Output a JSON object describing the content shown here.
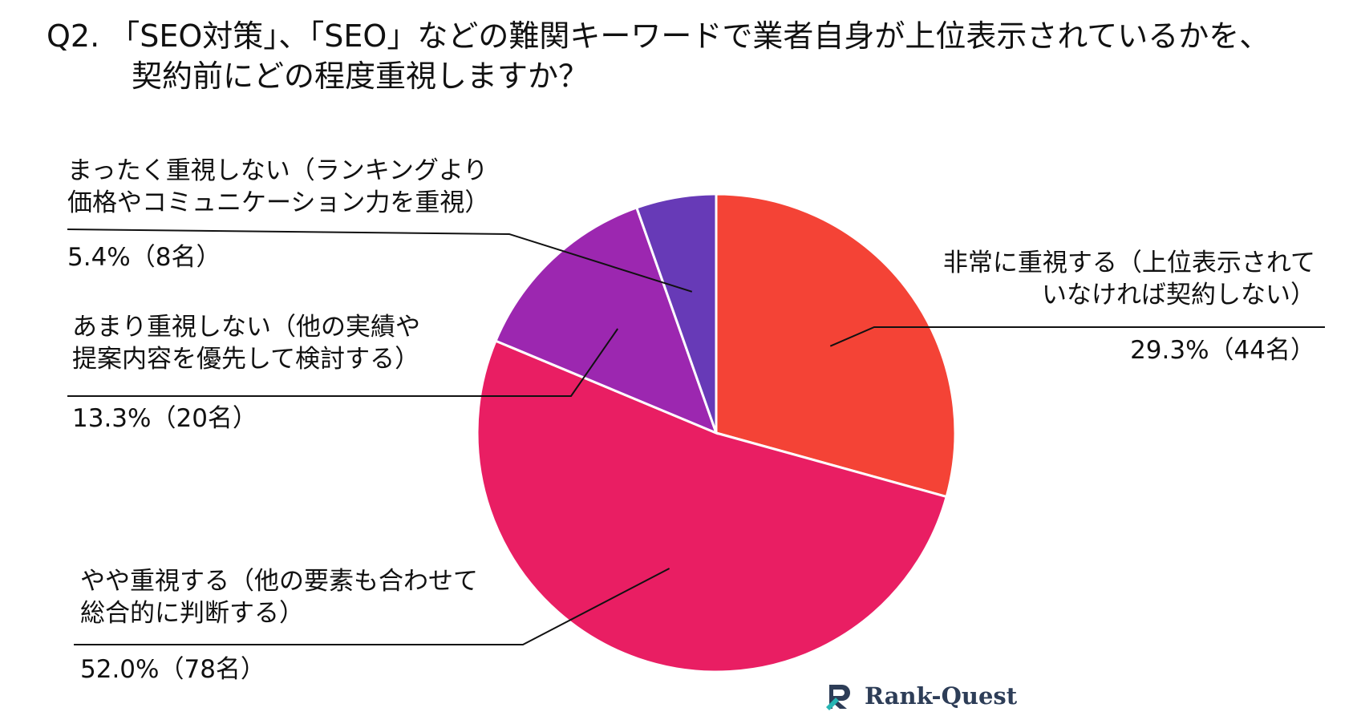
{
  "title": {
    "line1": "Q2. 「SEO対策」、「SEO」などの難関キーワードで業者自身が上位表示されているかを、",
    "line2": "契約前にどの程度重視しますか？"
  },
  "chart_data": {
    "type": "pie",
    "start_angle_deg": 0,
    "direction": "clockwise",
    "slices": [
      {
        "key": "very",
        "label_lines": [
          "非常に重視する（上位表示されて",
          "いなければ契約しない）"
        ],
        "value_text": "29.3%（44名）",
        "percent": 29.3,
        "count": 44,
        "color": "#f44336"
      },
      {
        "key": "somewhat",
        "label_lines": [
          "やや重視する（他の要素も合わせて",
          "総合的に判断する）"
        ],
        "value_text": "52.0%（78名）",
        "percent": 52.0,
        "count": 78,
        "color": "#e91e63"
      },
      {
        "key": "notmuch",
        "label_lines": [
          "あまり重視しない（他の実績や",
          "提案内容を優先して検討する）"
        ],
        "value_text": "13.3%（20名）",
        "percent": 13.3,
        "count": 20,
        "color": "#9c27b0"
      },
      {
        "key": "none",
        "label_lines": [
          "まったく重視しない（ランキングより",
          "価格やコミュニケーション力を重視）"
        ],
        "value_text": "5.4%（8名）",
        "percent": 5.4,
        "count": 8,
        "color": "#673ab7"
      }
    ]
  },
  "logo": {
    "text": "Rank-Quest",
    "color": "#2d3d57",
    "accent": "#27b6b4"
  }
}
